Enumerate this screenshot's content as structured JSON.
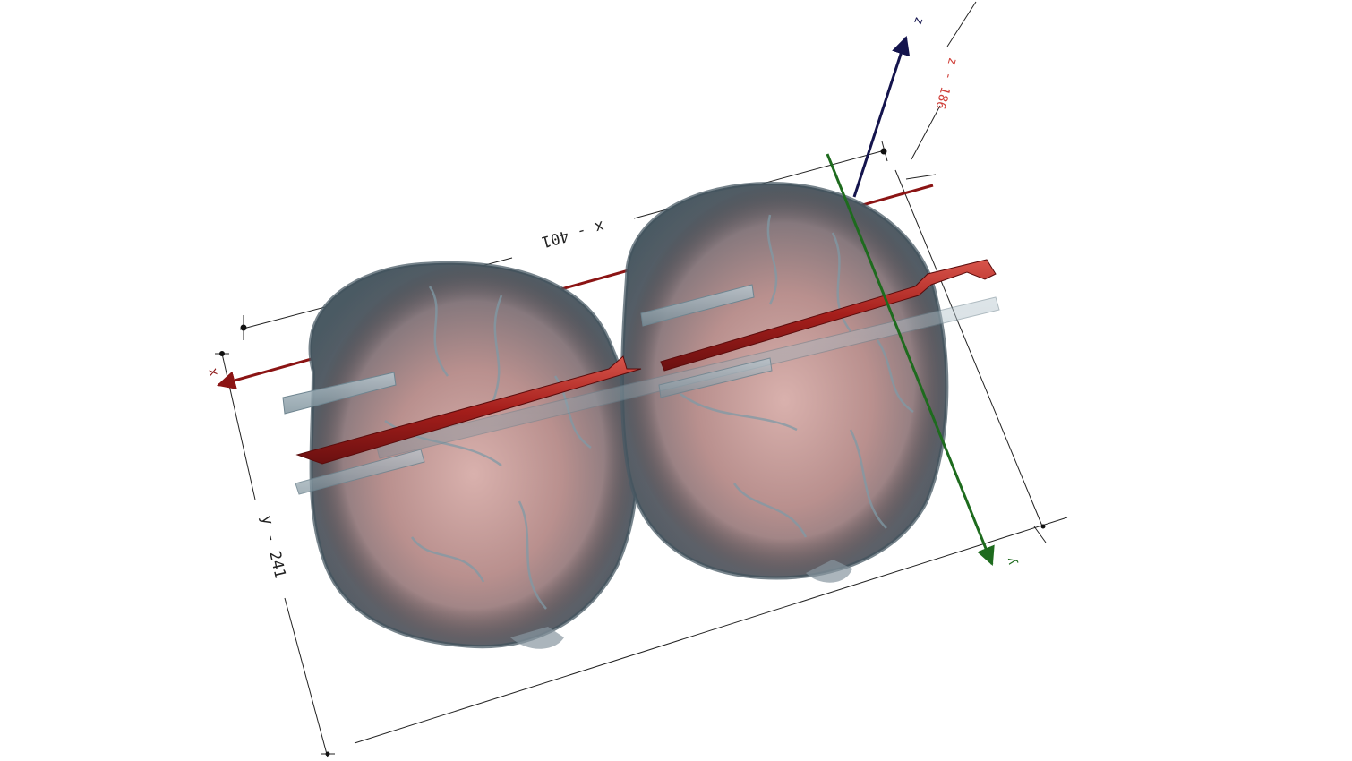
{
  "viewer": {
    "dimensions": {
      "x_label": "x - 401",
      "y_label": "y - 241",
      "z_label": "z - 186"
    },
    "axes": {
      "x": {
        "label": "x",
        "color": "#8b1414"
      },
      "y": {
        "label": "y",
        "color": "#1e6b1e"
      },
      "z": {
        "label": "z",
        "color": "#14144d"
      }
    },
    "volume": {
      "objects": [
        "skull-left",
        "skull-right"
      ],
      "tint_colors": {
        "bone": "#b58f8c",
        "vessel": "#7f9aa6",
        "implant": "#a8231f",
        "rod": "#8ea2ac"
      }
    }
  }
}
